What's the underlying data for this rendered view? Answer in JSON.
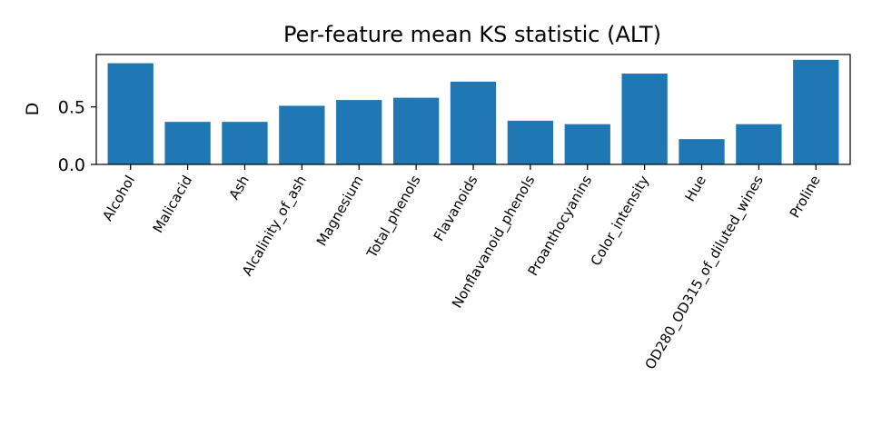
{
  "chart_data": {
    "type": "bar",
    "title": "Per-feature mean KS statistic (ALT)",
    "xlabel": "",
    "ylabel": "D",
    "categories": [
      "Alcohol",
      "Malicacid",
      "Ash",
      "Alcalinity_of_ash",
      "Magnesium",
      "Total_phenols",
      "Flavanoids",
      "Nonflavanoid_phenols",
      "Proanthocyanins",
      "Color_intensity",
      "Hue",
      "OD280_OD315_of_diluted_wines",
      "Proline"
    ],
    "values": [
      0.88,
      0.37,
      0.37,
      0.51,
      0.56,
      0.58,
      0.72,
      0.38,
      0.35,
      0.79,
      0.22,
      0.35,
      0.91
    ],
    "ylim": [
      0,
      0.956
    ],
    "yticks": [
      0.0,
      0.5
    ],
    "ytick_labels": [
      "0.0",
      "0.5"
    ],
    "grid": false,
    "bar_color": "#1f77b4"
  }
}
